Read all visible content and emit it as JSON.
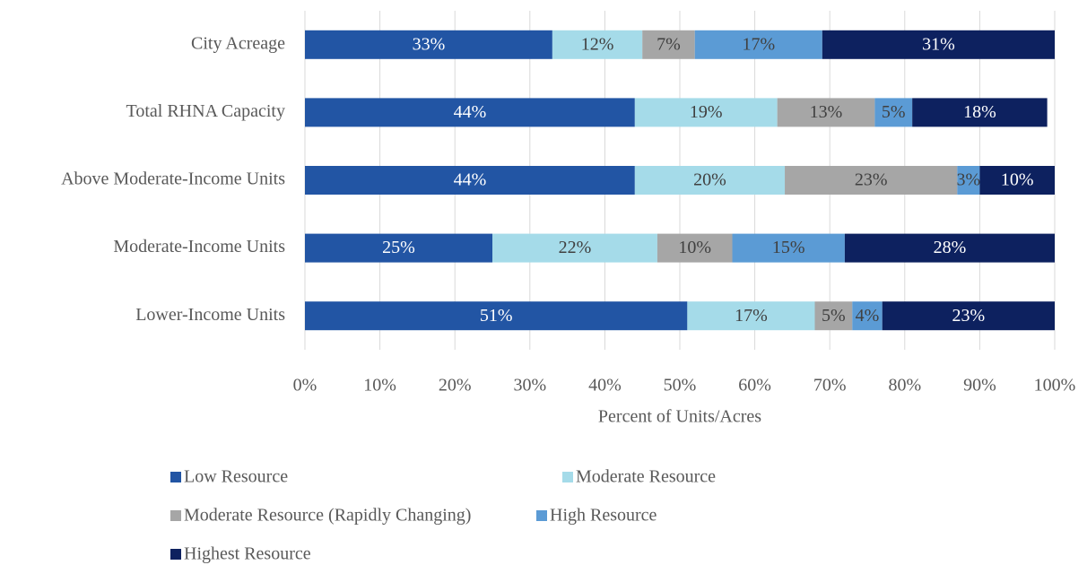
{
  "chart_data": {
    "type": "stacked_barh",
    "categories": [
      "City Acreage",
      "Total RHNA Capacity",
      "Above Moderate-Income Units",
      "Moderate-Income Units",
      "Lower-Income Units"
    ],
    "series": [
      {
        "name": "Low Resource",
        "color": "#2255a4",
        "values": [
          33,
          44,
          44,
          25,
          51
        ],
        "value_labels": [
          "33%",
          "44%",
          "44%",
          "25%",
          "51%"
        ]
      },
      {
        "name": "Moderate Resource",
        "color": "#a5dbe9",
        "values": [
          12,
          19,
          20,
          22,
          17
        ],
        "value_labels": [
          "12%",
          "19%",
          "20%",
          "22%",
          "17%"
        ]
      },
      {
        "name": "Moderate Resource (Rapidly Changing)",
        "color": "#a6a6a6",
        "values": [
          7,
          13,
          23,
          10,
          5
        ],
        "value_labels": [
          "7%",
          "13%",
          "23%",
          "10%",
          "5%"
        ]
      },
      {
        "name": "High Resource",
        "color": "#5b9bd5",
        "values": [
          17,
          5,
          3,
          15,
          4
        ],
        "value_labels": [
          "17%",
          "5%",
          "3%",
          "15%",
          "4%"
        ]
      },
      {
        "name": "Highest Resource",
        "color": "#0d215f",
        "values": [
          31,
          18,
          10,
          28,
          23
        ],
        "value_labels": [
          "31%",
          "18%",
          "10%",
          "28%",
          "23%"
        ]
      }
    ],
    "xlabel": "Percent of Units/Acres",
    "xlim": [
      0,
      100
    ],
    "xticks": [
      {
        "value": 0,
        "label": "0%"
      },
      {
        "value": 10,
        "label": "10%"
      },
      {
        "value": 20,
        "label": "20%"
      },
      {
        "value": 30,
        "label": "30%"
      },
      {
        "value": 40,
        "label": "40%"
      },
      {
        "value": 50,
        "label": "50%"
      },
      {
        "value": 60,
        "label": "60%"
      },
      {
        "value": 70,
        "label": "70%"
      },
      {
        "value": 80,
        "label": "80%"
      },
      {
        "value": 90,
        "label": "90%"
      },
      {
        "value": 100,
        "label": "100%"
      }
    ],
    "grid": true,
    "legend": "bottom"
  }
}
